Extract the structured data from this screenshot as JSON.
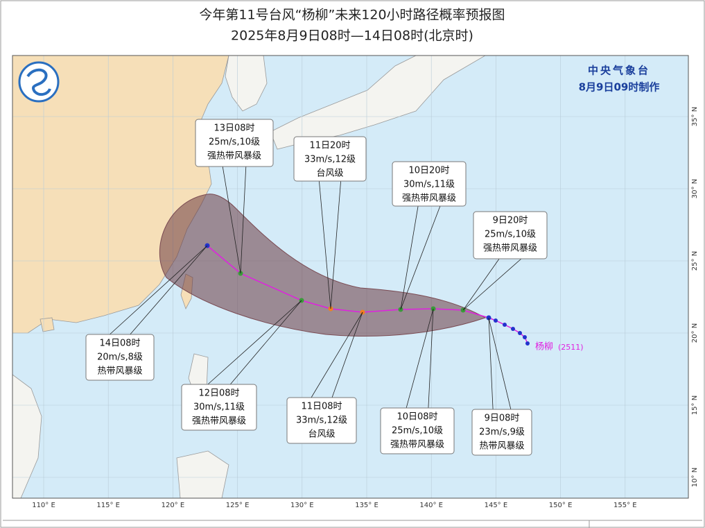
{
  "header": {
    "title": "今年第11号台风“杨柳”未来120小时路径概率预报图",
    "subtitle": "2025年8月9日08时—14日08时(北京时)"
  },
  "map": {
    "agency": "中央气象台",
    "issue_time": "8月9日09时制作",
    "storm_name": "杨柳",
    "storm_id": "(2511)",
    "lon_labels": [
      "110° E",
      "115° E",
      "120° E",
      "125° E",
      "130° E",
      "135° E",
      "140° E",
      "145° E",
      "150° E",
      "155° E"
    ],
    "lat_labels": [
      "35° N",
      "30° N",
      "25° N",
      "20° N",
      "15° N",
      "10° N"
    ],
    "callouts": [
      {
        "lines": [
          "13日08时",
          "25m/s,10级",
          "强热带风暴级"
        ]
      },
      {
        "lines": [
          "11日20时",
          "33m/s,12级",
          "台风级"
        ]
      },
      {
        "lines": [
          "10日20时",
          "30m/s,11级",
          "强热带风暴级"
        ]
      },
      {
        "lines": [
          "9日20时",
          "25m/s,10级",
          "强热带风暴级"
        ]
      },
      {
        "lines": [
          "14日08时",
          "20m/s,8级",
          "热带风暴级"
        ]
      },
      {
        "lines": [
          "12日08时",
          "30m/s,11级",
          "强热带风暴级"
        ]
      },
      {
        "lines": [
          "11日08时",
          "33m/s,12级",
          "台风级"
        ]
      },
      {
        "lines": [
          "10日08时",
          "25m/s,10级",
          "强热带风暴级"
        ]
      },
      {
        "lines": [
          "9日08时",
          "23m/s,9级",
          "热带风暴级"
        ]
      }
    ]
  }
}
